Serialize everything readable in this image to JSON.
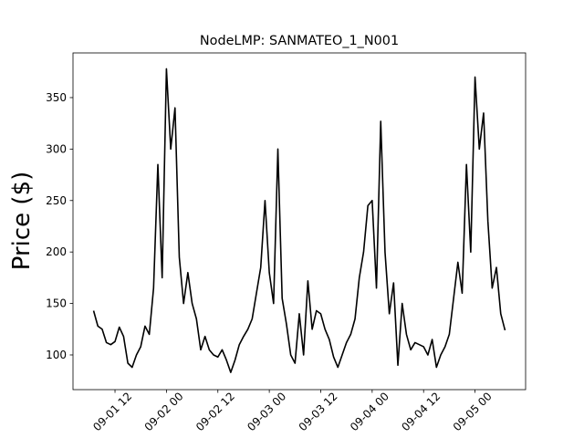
{
  "chart_data": {
    "type": "line",
    "title": "NodeLMP: SANMATEO_1_N001",
    "y_label": "Price ($)",
    "x": [
      "09-01 07",
      "09-01 08",
      "09-01 09",
      "09-01 10",
      "09-01 11",
      "09-01 12",
      "09-01 13",
      "09-01 14",
      "09-01 15",
      "09-01 16",
      "09-01 17",
      "09-01 18",
      "09-01 19",
      "09-01 20",
      "09-01 21",
      "09-01 22",
      "09-01 23",
      "09-02 00",
      "09-02 01",
      "09-02 02",
      "09-02 03",
      "09-02 04",
      "09-02 05",
      "09-02 06",
      "09-02 07",
      "09-02 08",
      "09-02 09",
      "09-02 10",
      "09-02 11",
      "09-02 12",
      "09-02 13",
      "09-02 14",
      "09-02 15",
      "09-02 16",
      "09-02 17",
      "09-02 18",
      "09-02 19",
      "09-02 20",
      "09-02 21",
      "09-02 22",
      "09-02 23",
      "09-03 00",
      "09-03 01",
      "09-03 02",
      "09-03 03",
      "09-03 04",
      "09-03 05",
      "09-03 06",
      "09-03 07",
      "09-03 08",
      "09-03 09",
      "09-03 10",
      "09-03 11",
      "09-03 12",
      "09-03 13",
      "09-03 14",
      "09-03 15",
      "09-03 16",
      "09-03 17",
      "09-03 18",
      "09-03 19",
      "09-03 20",
      "09-03 21",
      "09-03 22",
      "09-03 23",
      "09-04 00",
      "09-04 01",
      "09-04 02",
      "09-04 03",
      "09-04 04",
      "09-04 05",
      "09-04 06",
      "09-04 07",
      "09-04 08",
      "09-04 09",
      "09-04 10",
      "09-04 11",
      "09-04 12",
      "09-04 13",
      "09-04 14",
      "09-04 15",
      "09-04 16",
      "09-04 17",
      "09-04 18",
      "09-04 19",
      "09-04 20",
      "09-04 21",
      "09-04 22",
      "09-04 23",
      "09-05 00",
      "09-05 01",
      "09-05 02",
      "09-05 03",
      "09-05 04",
      "09-05 05",
      "09-05 06",
      "09-05 07"
    ],
    "series": [
      {
        "name": "SANMATEO_1_N001",
        "color": "#000000",
        "values": [
          143,
          128,
          125,
          112,
          110,
          113,
          127,
          118,
          92,
          88,
          100,
          108,
          128,
          120,
          165,
          285,
          175,
          378,
          300,
          340,
          195,
          150,
          180,
          150,
          135,
          105,
          118,
          105,
          100,
          98,
          105,
          95,
          83,
          95,
          110,
          118,
          125,
          135,
          160,
          185,
          250,
          180,
          150,
          300,
          155,
          130,
          100,
          92,
          140,
          100,
          172,
          125,
          143,
          140,
          125,
          115,
          98,
          88,
          100,
          112,
          120,
          135,
          175,
          200,
          245,
          250,
          165,
          327,
          200,
          140,
          170,
          90,
          150,
          120,
          105,
          112,
          110,
          108,
          100,
          115,
          88,
          100,
          108,
          120,
          155,
          190,
          160,
          285,
          200,
          370,
          300,
          335,
          230,
          165,
          185,
          140,
          124
        ]
      }
    ],
    "xlim": [
      "09-01 02:12",
      "09-05 11:48"
    ],
    "xticks": [
      "09-01 12",
      "09-02 00",
      "09-02 12",
      "09-03 00",
      "09-03 12",
      "09-04 00",
      "09-04 12",
      "09-05 00"
    ],
    "ylim": [
      66.3,
      393.4
    ],
    "yticks": [
      100,
      150,
      200,
      250,
      300,
      350
    ]
  }
}
